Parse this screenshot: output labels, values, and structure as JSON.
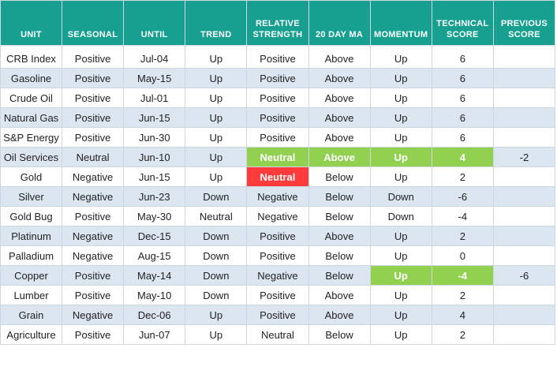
{
  "table": {
    "headers": [
      "UNIT",
      "SEASONAL",
      "UNTIL",
      "TREND",
      "RELATIVE STRENGTH",
      "20 DAY MA",
      "MOMENTUM",
      "TECHNICAL SCORE",
      "PREVIOUS SCORE"
    ],
    "rows": [
      [
        "CRB Index",
        "Positive",
        "Jul-04",
        "Up",
        "Positive",
        "Above",
        "Up",
        6
      ],
      [
        "Gasoline",
        "Positive",
        "May-15",
        "Up",
        "Positive",
        "Above",
        "Up",
        6
      ],
      [
        "Crude Oil",
        "Positive",
        "Jul-01",
        "Up",
        "Positive",
        "Above",
        "Up",
        6
      ],
      [
        "Natural Gas",
        "Positive",
        "Jun-15",
        "Up",
        "Positive",
        "Above",
        "Up",
        6
      ],
      [
        "S&P Energy",
        "Positive",
        "Jun-30",
        "Up",
        "Positive",
        "Above",
        "Up",
        6
      ],
      [
        "Oil Services",
        "Neutral",
        "Jun-10",
        "Up",
        "Neutral",
        "Above",
        "Up",
        4,
        -2
      ],
      [
        "Gold",
        "Negative",
        "Jun-15",
        "Up",
        "Neutral",
        "Below",
        "Up",
        2
      ],
      [
        "Silver",
        "Negative",
        "Jun-23",
        "Down",
        "Negative",
        "Below",
        "Down",
        -6
      ],
      [
        "Gold Bug",
        "Positive",
        "May-30",
        "Neutral",
        "Negative",
        "Below",
        "Down",
        -4
      ],
      [
        "Platinum",
        "Negative",
        "Dec-15",
        "Down",
        "Positive",
        "Above",
        "Up",
        2
      ],
      [
        "Palladium",
        "Negative",
        "Aug-15",
        "Down",
        "Positive",
        "Below",
        "Up",
        0
      ],
      [
        "Copper",
        "Positive",
        "May-14",
        "Down",
        "Negative",
        "Below",
        "Up",
        -4,
        -6
      ],
      [
        "Lumber",
        "Positive",
        "May-10",
        "Down",
        "Positive",
        "Above",
        "Up",
        2
      ],
      [
        "Grain",
        "Negative",
        "Dec-06",
        "Up",
        "Positive",
        "Above",
        "Up",
        4
      ],
      [
        "Agriculture",
        "Positive",
        "Jun-07",
        "Up",
        "Neutral",
        "Below",
        "Up",
        2
      ]
    ]
  }
}
